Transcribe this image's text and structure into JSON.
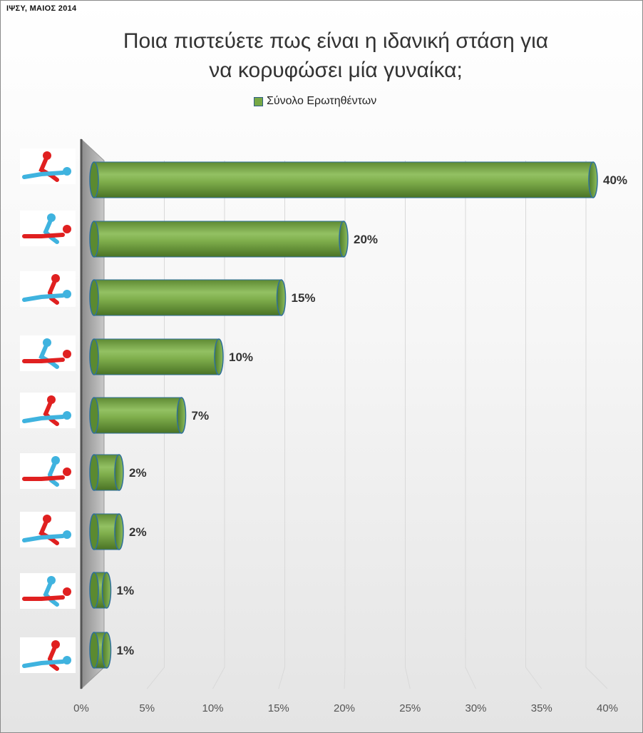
{
  "header": {
    "source_note": "ΙΨΣΥ, ΜΑΙΟΣ 2014"
  },
  "chart_data": {
    "type": "bar",
    "orientation": "horizontal",
    "title": "Ποια πιστεύετε πως είναι η ιδανική στάση για\nνα κορυφώσει μία γυναίκα;",
    "categories": [
      "position-1",
      "position-2",
      "position-3",
      "position-4",
      "position-5",
      "position-6",
      "position-7",
      "position-8",
      "position-9"
    ],
    "series": [
      {
        "name": "Σύνολο Ερωτηθέντων",
        "values": [
          40,
          20,
          15,
          10,
          7,
          2,
          2,
          1,
          1
        ]
      }
    ],
    "value_labels": [
      "40%",
      "20%",
      "15%",
      "10%",
      "7%",
      "2%",
      "2%",
      "1%",
      "1%"
    ],
    "xlim": [
      0,
      40
    ],
    "x_ticks": [
      "0%",
      "5%",
      "10%",
      "15%",
      "20%",
      "25%",
      "30%",
      "35%",
      "40%"
    ],
    "grid": true,
    "legend_position": "top",
    "category_icons": [
      "sex-position-icon",
      "sex-position-icon",
      "sex-position-icon",
      "sex-position-icon",
      "sex-position-icon",
      "sex-position-icon",
      "sex-position-icon",
      "sex-position-icon",
      "sex-position-icon"
    ],
    "colors": {
      "bar": "#6f9c3c",
      "bar_outline": "#2e6f9a",
      "red_figure": "#e02020",
      "blue_figure": "#3fb3df"
    }
  }
}
